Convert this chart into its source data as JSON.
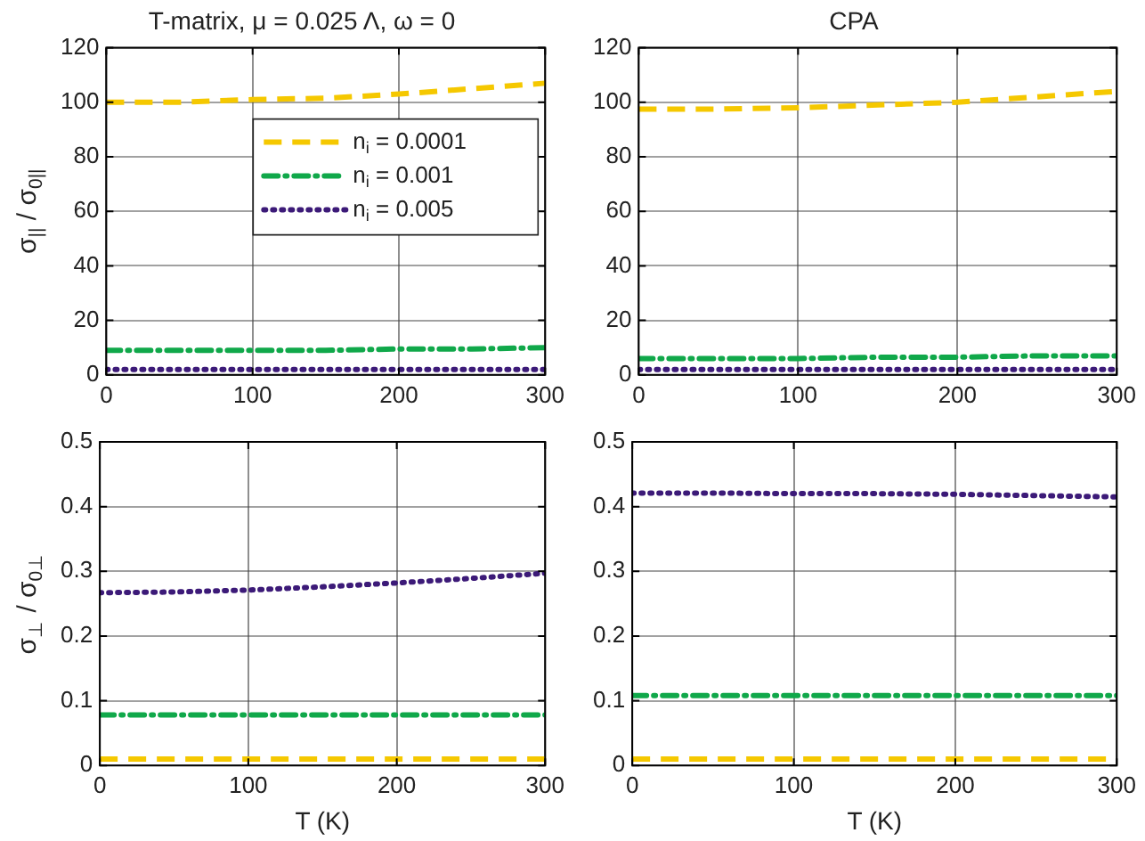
{
  "chart_data": [
    {
      "type": "line",
      "title": "T-matrix, μ = 0.025 Λ, ω = 0",
      "ylabel": "σ$_{||}$ / σ$_{0||}$",
      "x": [
        0,
        50,
        100,
        150,
        200,
        250,
        300
      ],
      "xlim": [
        0,
        300
      ],
      "xticks": [
        0,
        100,
        200,
        300
      ],
      "ylim": [
        0,
        120
      ],
      "yticks": [
        0,
        20,
        40,
        60,
        80,
        100,
        120
      ],
      "grid": true,
      "legend": "top right",
      "marker": "none",
      "series": [
        {
          "name": "n$_{i}$ = 0.0001",
          "color": "#f5c800",
          "line_style": "dashed",
          "values": [
            100,
            100,
            101,
            101.5,
            103,
            105,
            107
          ]
        },
        {
          "name": "n$_{i}$ = 0.001",
          "color": "#10a84a",
          "line_style": "dashdot",
          "values": [
            9,
            9,
            9,
            9,
            9.5,
            9.5,
            10
          ]
        },
        {
          "name": "n$_{i}$ = 0.005",
          "color": "#3c1a78",
          "line_style": "dotted",
          "values": [
            2,
            2,
            2,
            2,
            2,
            2,
            2
          ]
        }
      ]
    },
    {
      "type": "line",
      "title": "CPA",
      "x": [
        0,
        50,
        100,
        150,
        200,
        250,
        300
      ],
      "xlim": [
        0,
        300
      ],
      "xticks": [
        0,
        100,
        200,
        300
      ],
      "ylim": [
        0,
        120
      ],
      "yticks": [
        0,
        20,
        40,
        60,
        80,
        100,
        120
      ],
      "grid": true,
      "marker": "none",
      "series": [
        {
          "color": "#f5c800",
          "line_style": "dashed",
          "values": [
            97.5,
            97.5,
            98,
            99,
            100,
            102,
            104
          ]
        },
        {
          "color": "#10a84a",
          "line_style": "dashdot",
          "values": [
            6,
            6,
            6,
            6.5,
            6.5,
            7,
            7
          ]
        },
        {
          "color": "#3c1a78",
          "line_style": "dotted",
          "values": [
            2,
            2,
            2,
            2,
            2,
            2,
            2
          ]
        }
      ]
    },
    {
      "type": "line",
      "xlabel": "T (K)",
      "ylabel": "σ$_{⊥}$ / σ$_{0⊥}$",
      "x": [
        0,
        50,
        100,
        150,
        200,
        250,
        300
      ],
      "xlim": [
        0,
        300
      ],
      "xticks": [
        0,
        100,
        200,
        300
      ],
      "ylim": [
        0,
        0.5
      ],
      "yticks": [
        0,
        0.1,
        0.2,
        0.3,
        0.4,
        0.5
      ],
      "grid": true,
      "marker": "none",
      "series": [
        {
          "color": "#f5c800",
          "line_style": "dashed",
          "values": [
            0.01,
            0.01,
            0.01,
            0.01,
            0.01,
            0.01,
            0.01
          ]
        },
        {
          "color": "#10a84a",
          "line_style": "dashdot",
          "values": [
            0.078,
            0.078,
            0.078,
            0.078,
            0.078,
            0.078,
            0.078
          ]
        },
        {
          "color": "#3c1a78",
          "line_style": "dotted",
          "values": [
            0.267,
            0.268,
            0.271,
            0.276,
            0.282,
            0.289,
            0.297
          ]
        }
      ]
    },
    {
      "type": "line",
      "xlabel": "T (K)",
      "x": [
        0,
        50,
        100,
        150,
        200,
        250,
        300
      ],
      "xlim": [
        0,
        300
      ],
      "xticks": [
        0,
        100,
        200,
        300
      ],
      "ylim": [
        0,
        0.5
      ],
      "yticks": [
        0,
        0.1,
        0.2,
        0.3,
        0.4,
        0.5
      ],
      "grid": true,
      "marker": "none",
      "series": [
        {
          "color": "#f5c800",
          "line_style": "dashed",
          "values": [
            0.01,
            0.01,
            0.01,
            0.01,
            0.01,
            0.01,
            0.01
          ]
        },
        {
          "color": "#10a84a",
          "line_style": "dashdot",
          "values": [
            0.108,
            0.108,
            0.108,
            0.108,
            0.108,
            0.108,
            0.108
          ]
        },
        {
          "color": "#3c1a78",
          "line_style": "dotted",
          "values": [
            0.421,
            0.421,
            0.42,
            0.42,
            0.419,
            0.417,
            0.415
          ]
        }
      ]
    }
  ]
}
